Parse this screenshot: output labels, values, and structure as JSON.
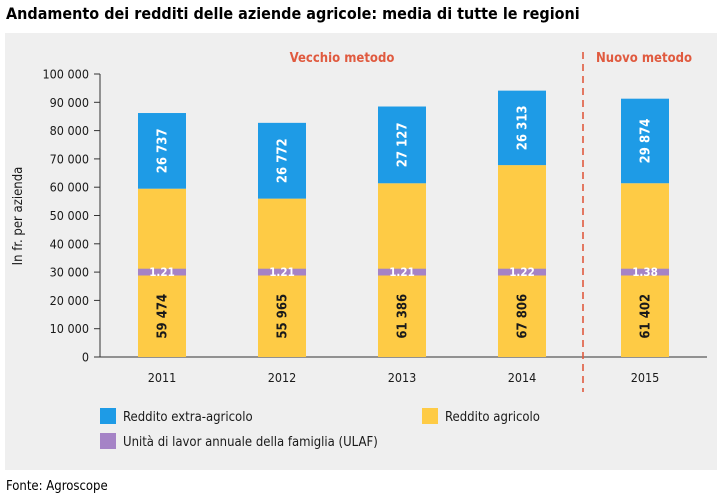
{
  "title": "Andamento dei redditi delle aziende agricole: media di tutte le regioni",
  "source": "Fonte: Agroscope",
  "colors": {
    "extra": "#1e9be6",
    "agricolo": "#fecb45",
    "ulaf": "#a583c6",
    "method": "#e05a3f",
    "panel": "#efefef"
  },
  "method_labels": {
    "old": "Vecchio metodo",
    "new": "Nuovo metodo"
  },
  "chart_data": {
    "type": "bar",
    "stacked": true,
    "title": "Andamento dei redditi delle aziende agricole: media di tutte le regioni",
    "xlabel": "",
    "ylabel": "In fr. per azienda",
    "ylim": [
      0,
      100000
    ],
    "yticks": [
      0,
      10000,
      20000,
      30000,
      40000,
      50000,
      60000,
      70000,
      80000,
      90000,
      100000
    ],
    "ytick_labels": [
      "0",
      "10 000",
      "20 000",
      "30 000",
      "40 000",
      "50 000",
      "60 000",
      "70 000",
      "80 000",
      "90 000",
      "100 000"
    ],
    "categories": [
      "2011",
      "2012",
      "2013",
      "2014",
      "2015"
    ],
    "series": [
      {
        "name": "Reddito agricolo",
        "values": [
          59474,
          55965,
          61386,
          67806,
          61402
        ],
        "labels": [
          "59 474",
          "55 965",
          "61 386",
          "67 806",
          "61 402"
        ]
      },
      {
        "name": "Reddito extra-agricolo",
        "values": [
          26737,
          26772,
          27127,
          26313,
          29874
        ],
        "labels": [
          "26 737",
          "26 772",
          "27 127",
          "26 313",
          "29 874"
        ]
      }
    ],
    "ulaf": {
      "name": "Unità di lavor annuale della famiglia (ULAF)",
      "values": [
        1.21,
        1.21,
        1.21,
        1.22,
        1.38
      ],
      "labels": [
        "1.21",
        "1.21",
        "1.21",
        "1.22",
        "1.38"
      ]
    },
    "legend": [
      "Reddito extra-agricolo",
      "Reddito agricolo",
      "Unità di lavor annuale della famiglia (ULAF)"
    ]
  }
}
